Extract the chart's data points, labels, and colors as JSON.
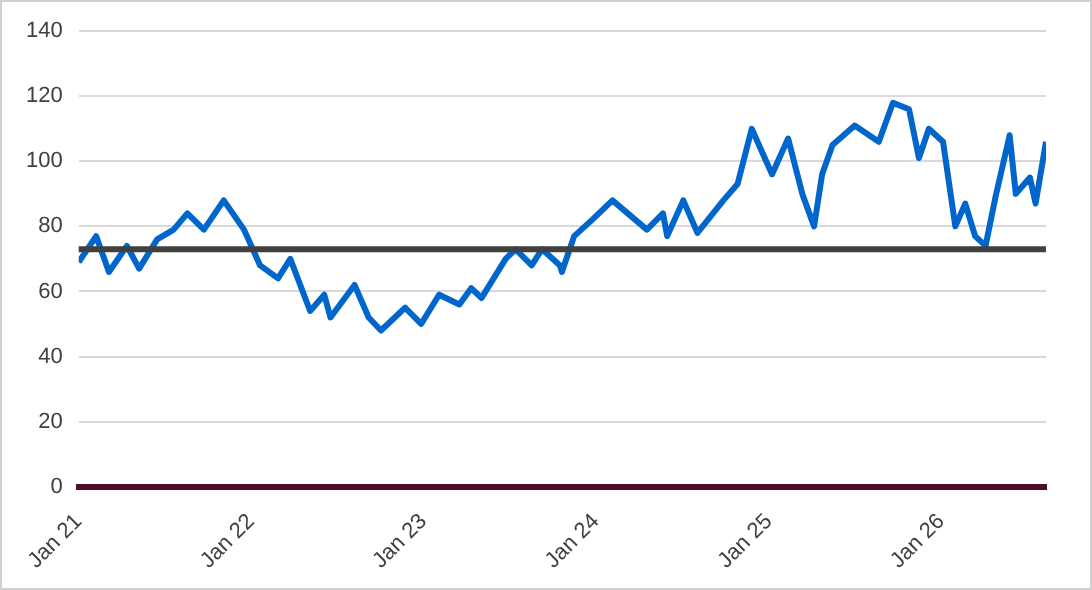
{
  "chart_data": {
    "type": "line",
    "x": [
      "2021-01-01",
      "2021-02-07",
      "2021-03-06",
      "2021-04-13",
      "2021-05-09",
      "2021-06-16",
      "2021-07-21",
      "2021-08-19",
      "2021-09-23",
      "2021-11-04",
      "2021-12-17",
      "2022-01-20",
      "2022-02-27",
      "2022-03-25",
      "2022-05-06",
      "2022-06-05",
      "2022-06-18",
      "2022-08-08",
      "2022-09-07",
      "2022-10-03",
      "2022-11-23",
      "2022-12-27",
      "2023-02-03",
      "2023-03-18",
      "2023-04-12",
      "2023-05-04",
      "2023-06-24",
      "2023-07-15",
      "2023-08-18",
      "2023-09-09",
      "2023-10-17",
      "2023-10-21",
      "2023-11-16",
      "2023-12-24",
      "2024-02-05",
      "2024-04-18",
      "2024-05-22",
      "2024-05-31",
      "2024-07-04",
      "2024-08-03",
      "2024-09-27",
      "2024-10-27",
      "2024-11-26",
      "2025-01-08",
      "2025-02-11",
      "2025-03-13",
      "2025-04-07",
      "2025-04-24",
      "2025-05-16",
      "2025-07-02",
      "2025-08-22",
      "2025-09-21",
      "2025-10-25",
      "2025-11-15",
      "2025-12-06",
      "2026-01-05",
      "2026-01-31",
      "2026-02-21",
      "2026-03-14",
      "2026-04-05",
      "2026-04-26",
      "2026-05-26",
      "2026-06-08",
      "2026-07-08",
      "2026-07-20",
      "2026-08-11"
    ],
    "series": [
      {
        "color": "#0066cc",
        "values": [
          69,
          77,
          66,
          74,
          67,
          76,
          79,
          84,
          79,
          88,
          79,
          68,
          64,
          70,
          54,
          59,
          52,
          62,
          52,
          48,
          55,
          50,
          59,
          56,
          61,
          58,
          70,
          73,
          68,
          73,
          68,
          66,
          77,
          82,
          88,
          79,
          84,
          77,
          88,
          78,
          88,
          93,
          110,
          96,
          107,
          90,
          80,
          96,
          105,
          111,
          106,
          118,
          116,
          101,
          110,
          106,
          80,
          87,
          77,
          74,
          89,
          108,
          90,
          95,
          87,
          106
        ]
      }
    ],
    "xlim": [
      "2021-01-01",
      "2026-08-11"
    ],
    "xticks": [
      {
        "value": "2021-01-01",
        "label": "Jan 21"
      },
      {
        "value": "2022-01-01",
        "label": "Jan 22"
      },
      {
        "value": "2023-01-01",
        "label": "Jan 23"
      },
      {
        "value": "2024-01-01",
        "label": "Jan 24"
      },
      {
        "value": "2025-01-01",
        "label": "Jan 25"
      },
      {
        "value": "2026-01-01",
        "label": "Jan 26"
      }
    ],
    "ylim": [
      0,
      140
    ],
    "yticks": [
      0,
      20,
      40,
      60,
      80,
      100,
      120,
      140
    ],
    "ref_lines": [
      {
        "axis": "y",
        "value": 73,
        "color": "#404040"
      }
    ],
    "grid": "y",
    "legend": false,
    "marker": "none",
    "line_style": "solid"
  }
}
